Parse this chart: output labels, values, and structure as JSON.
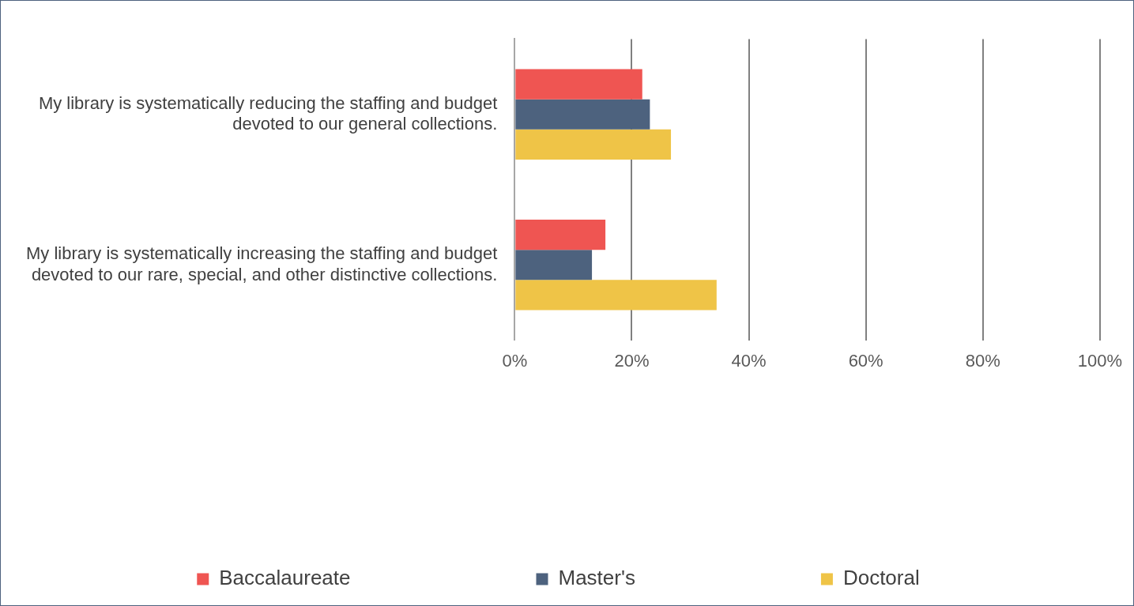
{
  "chart_data": {
    "type": "bar",
    "orientation": "horizontal",
    "categories": [
      "My library is systematically reducing the staffing and budget devoted to our general collections.",
      "My library is systematically increasing the staffing and budget devoted to our rare, special, and other distinctive collections."
    ],
    "series": [
      {
        "name": "Baccalaureate",
        "color": "#ef5552",
        "values": [
          21.8,
          15.5
        ]
      },
      {
        "name": "Master's",
        "color": "#4d627e",
        "values": [
          23.1,
          13.2
        ]
      },
      {
        "name": "Doctoral",
        "color": "#efc447",
        "values": [
          26.7,
          34.5
        ]
      }
    ],
    "xlim": [
      0,
      100
    ],
    "xticks": [
      {
        "value": 0,
        "label": "0%"
      },
      {
        "value": 20,
        "label": "20%"
      },
      {
        "value": 40,
        "label": "40%"
      },
      {
        "value": 60,
        "label": "60%"
      },
      {
        "value": 80,
        "label": "80%"
      },
      {
        "value": 100,
        "label": "100%"
      }
    ],
    "grid": "x",
    "legend": "bottom"
  }
}
